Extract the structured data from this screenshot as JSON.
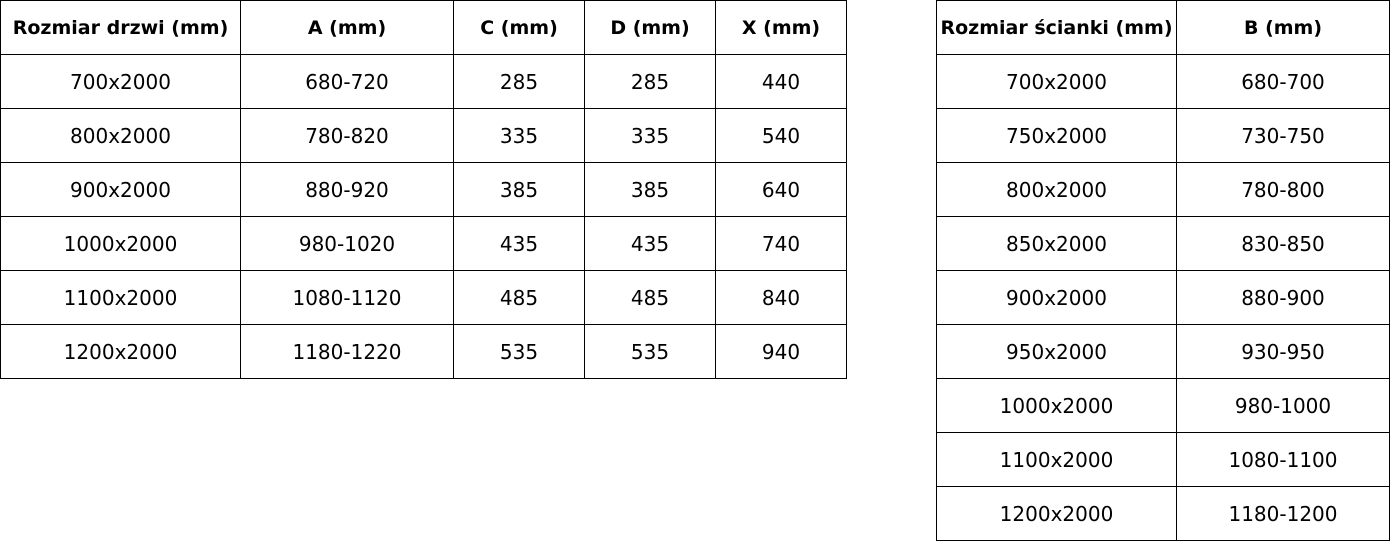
{
  "door_table": {
    "headers": [
      "Rozmiar drzwi (mm)",
      "A (mm)",
      "C (mm)",
      "D (mm)",
      "X (mm)"
    ],
    "rows": [
      [
        "700x2000",
        "680-720",
        "285",
        "285",
        "440"
      ],
      [
        "800x2000",
        "780-820",
        "335",
        "335",
        "540"
      ],
      [
        "900x2000",
        "880-920",
        "385",
        "385",
        "640"
      ],
      [
        "1000x2000",
        "980-1020",
        "435",
        "435",
        "740"
      ],
      [
        "1100x2000",
        "1080-1120",
        "485",
        "485",
        "840"
      ],
      [
        "1200x2000",
        "1180-1220",
        "535",
        "535",
        "940"
      ]
    ]
  },
  "wall_table": {
    "headers": [
      "Rozmiar ścianki (mm)",
      "B (mm)"
    ],
    "rows": [
      [
        "700x2000",
        "680-700"
      ],
      [
        "750x2000",
        "730-750"
      ],
      [
        "800x2000",
        "780-800"
      ],
      [
        "850x2000",
        "830-850"
      ],
      [
        "900x2000",
        "880-900"
      ],
      [
        "950x2000",
        "930-950"
      ],
      [
        "1000x2000",
        "980-1000"
      ],
      [
        "1100x2000",
        "1080-1100"
      ],
      [
        "1200x2000",
        "1180-1200"
      ]
    ]
  }
}
